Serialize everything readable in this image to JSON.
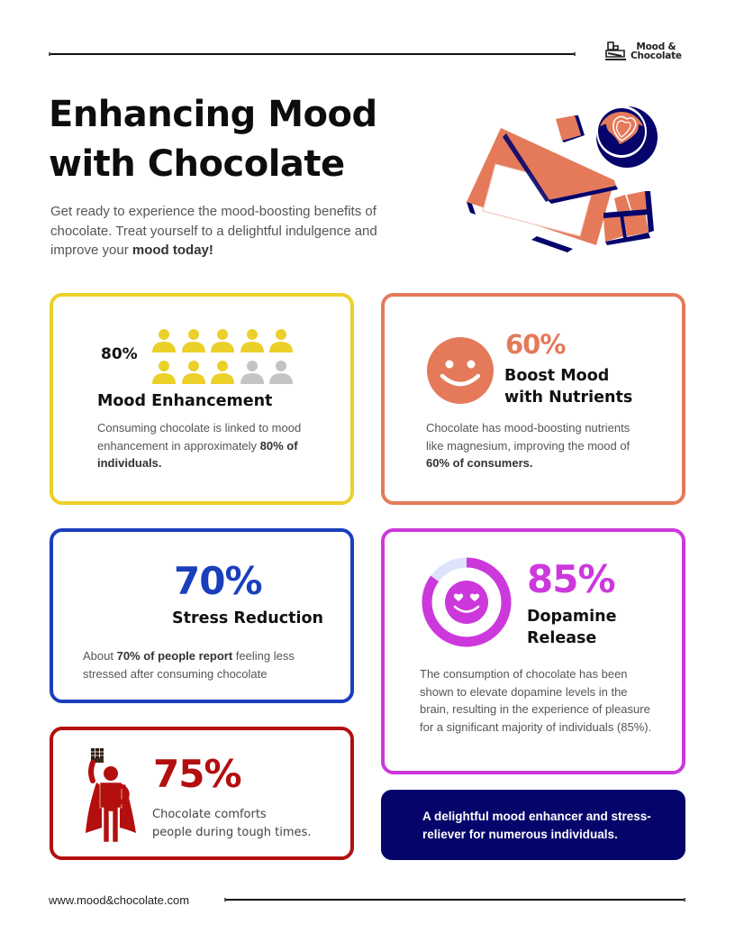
{
  "header": {
    "brand_line1": "Mood &",
    "brand_line2": "Chocolate",
    "brand_icon": "chocolate-stack-icon"
  },
  "hero": {
    "title_line1": "Enhancing Mood",
    "title_line2": "with Chocolate",
    "intro_plain": "Get ready to experience the mood-boosting benefits of chocolate. Treat yourself to a delightful indulgence and improve your ",
    "intro_bold": "mood today!",
    "illustration": "chocolate-envelope-and-coffee-illustration"
  },
  "colors": {
    "yellow": "#ecd02a",
    "gray_person": "#c4c4c4",
    "orange": "#e47a5a",
    "blue": "#1a3fbd",
    "purple": "#cc38dc",
    "purple_track": "#dde3fb",
    "red": "#b30f0f",
    "navy": "#05046b"
  },
  "cards": {
    "mood_enhancement": {
      "percent": "80%",
      "icon": "people-pictogram-icon",
      "filled_people": 8,
      "total_people": 10,
      "title": "Mood Enhancement",
      "body_plain": "Consuming chocolate is linked to mood enhancement in approximately ",
      "body_bold": "80% of individuals."
    },
    "boost_mood": {
      "percent": "60%",
      "icon": "smiley-face-icon",
      "title_line1": "Boost Mood",
      "title_line2": "with Nutrients",
      "body_plain": "Chocolate has mood-boosting nutrients like magnesium, improving the mood of ",
      "body_bold": "60% of consumers."
    },
    "stress_reduction": {
      "percent": "70%",
      "title": "Stress Reduction",
      "body_pre": "About ",
      "body_bold": "70% of people report",
      "body_post": " feeling less stressed after consuming chocolate"
    },
    "dopamine": {
      "percent": "85%",
      "icon": "heart-eyes-smiley-icon",
      "ring_value": 85,
      "title_line1": "Dopamine",
      "title_line2": "Release",
      "body": "The consumption of chocolate has been shown to elevate dopamine levels in the brain, resulting in the experience of pleasure for a significant majority of individuals (85%)."
    },
    "comfort": {
      "percent": "75%",
      "icon": "superhero-holding-chocolate-icon",
      "body_line1": "Chocolate comforts",
      "body_line2": "people during tough times."
    },
    "summary": {
      "text": "A delightful mood enhancer and stress-reliever for numerous individuals."
    }
  },
  "footer": {
    "url": "www.mood&chocolate.com"
  }
}
